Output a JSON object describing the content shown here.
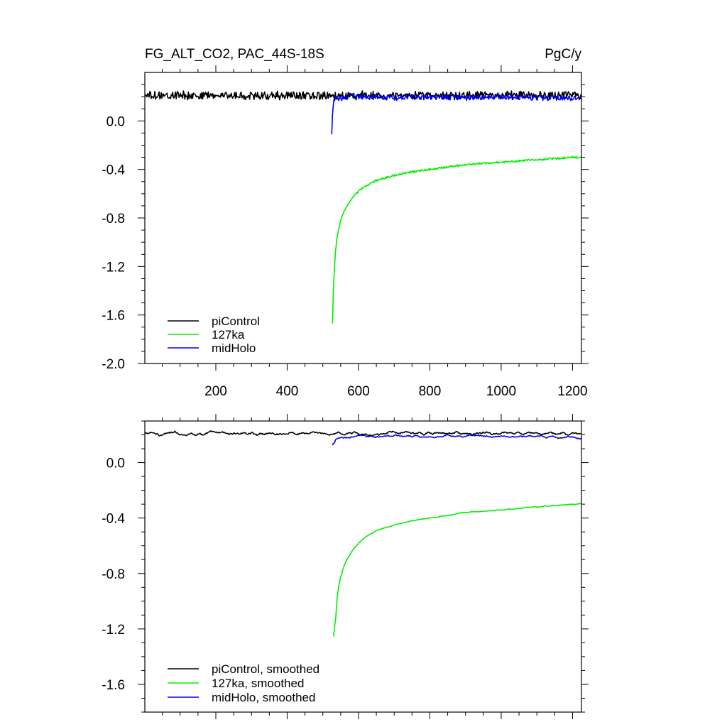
{
  "chart_data": [
    {
      "type": "line",
      "title": "FG_ALT_CO2, PAC_44S-18S",
      "units": "PgC/y",
      "xlim": [
        1,
        1225
      ],
      "ylim": [
        -2.0,
        0.4
      ],
      "x_ticks": [
        200,
        400,
        600,
        800,
        1000,
        1200
      ],
      "y_ticks": [
        0.0,
        -0.4,
        -0.8,
        -1.2,
        -1.6,
        -2.0
      ],
      "y_tick_labels": [
        "0.0",
        "-0.4",
        "-0.8",
        "-1.2",
        "-1.6",
        "-2.0"
      ],
      "legend_position": "bottom-left",
      "series": [
        {
          "name": "piControl",
          "color": "#000000",
          "x_range": [
            1,
            1225
          ],
          "mean": 0.21,
          "noise": 0.03,
          "smoothed": false
        },
        {
          "name": "127ka",
          "color": "#00ee00",
          "x": [
            527,
            530,
            535,
            540,
            550,
            560,
            575,
            600,
            625,
            650,
            700,
            750,
            800,
            900,
            1000,
            1100,
            1200,
            1225
          ],
          "y": [
            -1.67,
            -1.35,
            -1.1,
            -0.95,
            -0.82,
            -0.74,
            -0.66,
            -0.58,
            -0.53,
            -0.49,
            -0.45,
            -0.42,
            -0.4,
            -0.36,
            -0.34,
            -0.32,
            -0.3,
            -0.3
          ],
          "noise": 0.008,
          "smoothed": false
        },
        {
          "name": "midHolo",
          "color": "#0000ee",
          "x": [
            525,
            527,
            529,
            531,
            535,
            545,
            560,
            600,
            700,
            800,
            900,
            1000,
            1100,
            1200,
            1225
          ],
          "y": [
            -0.11,
            0.05,
            0.12,
            0.17,
            0.18,
            0.19,
            0.19,
            0.2,
            0.19,
            0.2,
            0.19,
            0.2,
            0.19,
            0.19,
            0.19
          ],
          "noise": 0.022,
          "smoothed": false
        }
      ]
    },
    {
      "type": "line",
      "xlim": [
        1,
        1225
      ],
      "ylim": [
        -1.8,
        0.3
      ],
      "x_ticks": [
        200,
        400,
        600,
        800,
        1000,
        1200
      ],
      "y_ticks": [
        0.0,
        -0.4,
        -0.8,
        -1.2,
        -1.6
      ],
      "y_tick_labels": [
        "0.0",
        "-0.4",
        "-0.8",
        "-1.2",
        "-1.6"
      ],
      "legend_position": "bottom-left",
      "series": [
        {
          "name": "piControl, smoothed",
          "color": "#000000",
          "x_range": [
            1,
            1225
          ],
          "mean": 0.21,
          "noise": 0.03,
          "smoothed": true
        },
        {
          "name": "127ka, smoothed",
          "color": "#00ee00",
          "x": [
            530,
            535,
            540,
            550,
            560,
            575,
            600,
            625,
            650,
            700,
            750,
            800,
            900,
            1000,
            1100,
            1200,
            1225
          ],
          "y": [
            -1.46,
            -1.1,
            -0.95,
            -0.82,
            -0.74,
            -0.66,
            -0.58,
            -0.53,
            -0.49,
            -0.45,
            -0.42,
            -0.4,
            -0.36,
            -0.34,
            -0.32,
            -0.3,
            -0.3
          ],
          "noise": 0.008,
          "smoothed": true
        },
        {
          "name": "midHolo, smoothed",
          "color": "#0000ee",
          "x": [
            527,
            529,
            531,
            535,
            545,
            560,
            600,
            700,
            800,
            900,
            1000,
            1100,
            1200,
            1225
          ],
          "y": [
            0.05,
            0.12,
            0.16,
            0.17,
            0.18,
            0.19,
            0.19,
            0.19,
            0.19,
            0.19,
            0.19,
            0.19,
            0.18,
            0.18
          ],
          "noise": 0.022,
          "smoothed": true
        }
      ]
    }
  ]
}
